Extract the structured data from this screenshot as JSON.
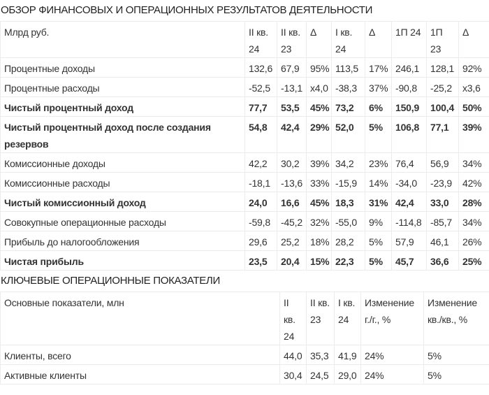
{
  "financial": {
    "title": "ОБЗОР ФИНАНСОВЫХ И ОПЕРАЦИОННЫХ РЕЗУЛЬТАТОВ ДЕЯТЕЛЬНОСТИ",
    "headers": [
      "Млрд руб.",
      "II кв. 24",
      "II кв. 23",
      "Δ",
      "I кв. 24",
      "Δ",
      "1П 24",
      "1П 23",
      "Δ"
    ],
    "rows": [
      {
        "bold": false,
        "cells": [
          "Процентные доходы",
          "132,6",
          "67,9",
          "95%",
          "113,5",
          "17%",
          "246,1",
          "128,1",
          "92%"
        ]
      },
      {
        "bold": false,
        "cells": [
          "Процентные расходы",
          "-52,5",
          "-13,1",
          "x4,0",
          "-38,3",
          "37%",
          "-90,8",
          "-25,2",
          "x3,6"
        ]
      },
      {
        "bold": true,
        "cells": [
          "Чистый процентный доход",
          "77,7",
          "53,5",
          "45%",
          "73,2",
          "6%",
          "150,9",
          "100,4",
          "50%"
        ]
      },
      {
        "bold": true,
        "cells": [
          "Чистый процентный доход после создания резервов",
          "54,8",
          "42,4",
          "29%",
          "52,0",
          "5%",
          "106,8",
          "77,1",
          "39%"
        ]
      },
      {
        "bold": false,
        "cells": [
          "Комиссионные доходы",
          "42,2",
          "30,2",
          "39%",
          "34,2",
          "23%",
          "76,4",
          "56,9",
          "34%"
        ]
      },
      {
        "bold": false,
        "cells": [
          "Комиссионные расходы",
          "-18,1",
          "-13,6",
          "33%",
          "-15,9",
          "14%",
          "-34,0",
          "-23,9",
          "42%"
        ]
      },
      {
        "bold": true,
        "cells": [
          "Чистый комиссионный доход",
          "24,0",
          "16,6",
          "45%",
          "18,3",
          "31%",
          "42,4",
          "33,0",
          "28%"
        ]
      },
      {
        "bold": false,
        "cells": [
          "Совокупные операционные расходы",
          "-59,8",
          "-45,2",
          "32%",
          "-55,0",
          "9%",
          "-114,8",
          "-85,7",
          "34%"
        ]
      },
      {
        "bold": false,
        "cells": [
          "Прибыль до налогообложения",
          "29,6",
          "25,2",
          "18%",
          "28,2",
          "5%",
          "57,9",
          "46,1",
          "26%"
        ]
      },
      {
        "bold": true,
        "cells": [
          "Чистая прибыль",
          "23,5",
          "20,4",
          "15%",
          "22,3",
          "5%",
          "45,7",
          "36,6",
          "25%"
        ]
      }
    ]
  },
  "operational": {
    "title": "КЛЮЧЕВЫЕ ОПЕРАЦИОННЫЕ ПОКАЗАТЕЛИ",
    "headers": [
      "Основные показатели, млн",
      "II кв. 24",
      "II кв. 23",
      "I кв. 24",
      "Изменение г./г., %",
      "Изменение кв./кв., %"
    ],
    "rows": [
      {
        "bold": false,
        "cells": [
          "Клиенты, всего",
          "44,0",
          "35,3",
          "41,9",
          "24%",
          "5%"
        ]
      },
      {
        "bold": false,
        "cells": [
          "Активные клиенты",
          "30,4",
          "24,5",
          "29,0",
          "24%",
          "5%"
        ]
      }
    ]
  }
}
